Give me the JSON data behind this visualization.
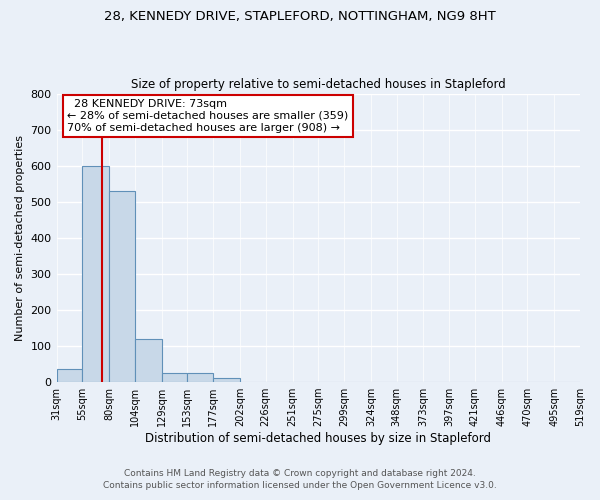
{
  "title": "28, KENNEDY DRIVE, STAPLEFORD, NOTTINGHAM, NG9 8HT",
  "subtitle": "Size of property relative to semi-detached houses in Stapleford",
  "xlabel": "Distribution of semi-detached houses by size in Stapleford",
  "ylabel": "Number of semi-detached properties",
  "bin_labels": [
    "31sqm",
    "55sqm",
    "80sqm",
    "104sqm",
    "129sqm",
    "153sqm",
    "177sqm",
    "202sqm",
    "226sqm",
    "251sqm",
    "275sqm",
    "299sqm",
    "324sqm",
    "348sqm",
    "373sqm",
    "397sqm",
    "421sqm",
    "446sqm",
    "470sqm",
    "495sqm",
    "519sqm"
  ],
  "bin_edges": [
    31,
    55,
    80,
    104,
    129,
    153,
    177,
    202,
    226,
    251,
    275,
    299,
    324,
    348,
    373,
    397,
    421,
    446,
    470,
    495,
    519
  ],
  "bar_heights": [
    35,
    600,
    530,
    120,
    25,
    25,
    10,
    0,
    0,
    0,
    0,
    0,
    0,
    0,
    0,
    0,
    0,
    0,
    0,
    0
  ],
  "bar_color": "#c8d8e8",
  "bar_edgecolor": "#6090b8",
  "background_color": "#eaf0f8",
  "grid_color": "#ffffff",
  "red_line_x": 73,
  "annotation_title": "28 KENNEDY DRIVE: 73sqm",
  "annotation_line1": "← 28% of semi-detached houses are smaller (359)",
  "annotation_line2": "70% of semi-detached houses are larger (908) →",
  "annotation_box_color": "#ffffff",
  "annotation_box_edgecolor": "#cc0000",
  "red_line_color": "#cc0000",
  "footnote1": "Contains HM Land Registry data © Crown copyright and database right 2024.",
  "footnote2": "Contains public sector information licensed under the Open Government Licence v3.0.",
  "ylim": [
    0,
    800
  ],
  "yticks": [
    0,
    100,
    200,
    300,
    400,
    500,
    600,
    700,
    800
  ],
  "title_fontsize": 9.5,
  "subtitle_fontsize": 8.5
}
